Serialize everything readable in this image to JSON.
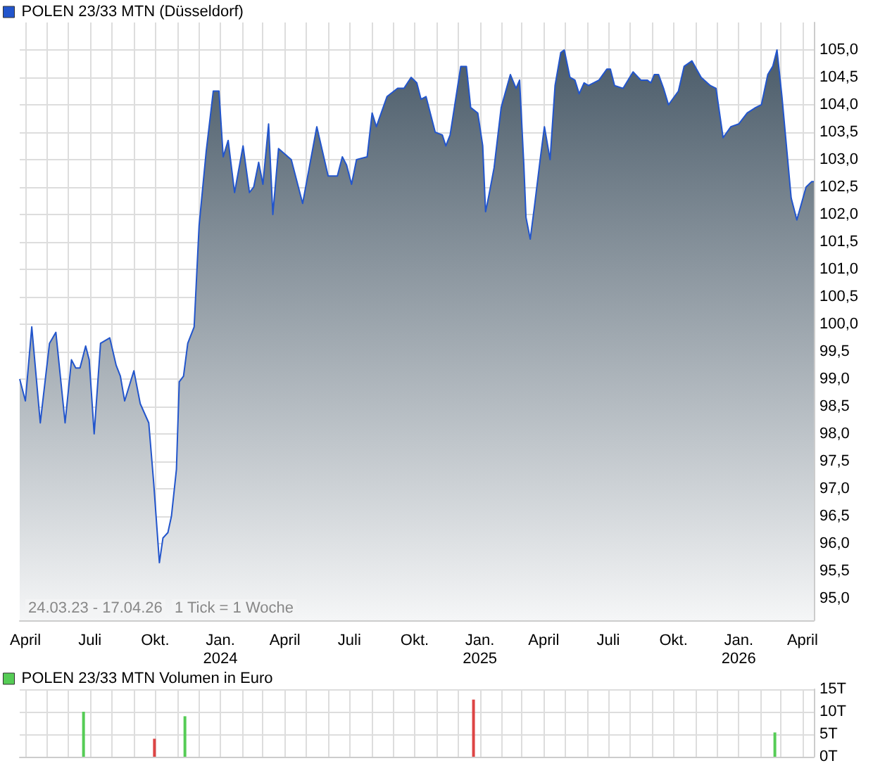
{
  "chart_data": [
    {
      "type": "area",
      "legend": "top left",
      "grid": true,
      "marker": "none",
      "line_style": "solid",
      "annotations": [
        "24.03.23 - 17.04.26",
        "1 Tick = 1 Woche"
      ],
      "xlim": [
        "2023-03-24",
        "2026-04-17"
      ],
      "xticks": [
        {
          "value": "2023-04-01",
          "label": "April"
        },
        {
          "value": "2023-05-01",
          "label": null
        },
        {
          "value": "2023-06-01",
          "label": null
        },
        {
          "value": "2023-07-01",
          "label": "Juli"
        },
        {
          "value": "2023-08-01",
          "label": null
        },
        {
          "value": "2023-09-01",
          "label": null
        },
        {
          "value": "2023-10-01",
          "label": "Okt."
        },
        {
          "value": "2023-11-01",
          "label": null
        },
        {
          "value": "2023-12-01",
          "label": null
        },
        {
          "value": "2024-01-01",
          "label": "Jan.\n2024"
        },
        {
          "value": "2024-02-01",
          "label": null
        },
        {
          "value": "2024-03-01",
          "label": null
        },
        {
          "value": "2024-04-01",
          "label": "April"
        },
        {
          "value": "2024-05-01",
          "label": null
        },
        {
          "value": "2024-06-01",
          "label": null
        },
        {
          "value": "2024-07-01",
          "label": "Juli"
        },
        {
          "value": "2024-08-01",
          "label": null
        },
        {
          "value": "2024-09-01",
          "label": null
        },
        {
          "value": "2024-10-01",
          "label": "Okt."
        },
        {
          "value": "2024-11-01",
          "label": null
        },
        {
          "value": "2024-12-01",
          "label": null
        },
        {
          "value": "2025-01-01",
          "label": "Jan.\n2025"
        },
        {
          "value": "2025-02-01",
          "label": null
        },
        {
          "value": "2025-03-01",
          "label": null
        },
        {
          "value": "2025-04-01",
          "label": "April"
        },
        {
          "value": "2025-05-01",
          "label": null
        },
        {
          "value": "2025-06-01",
          "label": null
        },
        {
          "value": "2025-07-01",
          "label": "Juli"
        },
        {
          "value": "2025-08-01",
          "label": null
        },
        {
          "value": "2025-09-01",
          "label": null
        },
        {
          "value": "2025-10-01",
          "label": "Okt."
        },
        {
          "value": "2025-11-01",
          "label": null
        },
        {
          "value": "2025-12-01",
          "label": null
        },
        {
          "value": "2026-01-01",
          "label": "Jan.\n2026"
        },
        {
          "value": "2026-02-01",
          "label": null
        },
        {
          "value": "2026-03-01",
          "label": null
        },
        {
          "value": "2026-04-01",
          "label": "April"
        }
      ],
      "ylim": [
        94.6,
        105.5
      ],
      "yticks": [
        {
          "value": 95,
          "label": "95,0"
        },
        {
          "value": 95.5,
          "label": "95,5"
        },
        {
          "value": 96,
          "label": "96,0"
        },
        {
          "value": 96.5,
          "label": "96,5"
        },
        {
          "value": 97,
          "label": "97,0"
        },
        {
          "value": 97.5,
          "label": "97,5"
        },
        {
          "value": 98,
          "label": "98,0"
        },
        {
          "value": 98.5,
          "label": "98,5"
        },
        {
          "value": 99,
          "label": "99,0"
        },
        {
          "value": 99.5,
          "label": "99,5"
        },
        {
          "value": 100,
          "label": "100,0"
        },
        {
          "value": 100.5,
          "label": "100,5"
        },
        {
          "value": 101,
          "label": "101,0"
        },
        {
          "value": 101.5,
          "label": "101,5"
        },
        {
          "value": 102,
          "label": "102,0"
        },
        {
          "value": 102.5,
          "label": "102,5"
        },
        {
          "value": 103,
          "label": "103,0"
        },
        {
          "value": 103.5,
          "label": "103,5"
        },
        {
          "value": 104,
          "label": "104,0"
        },
        {
          "value": 104.5,
          "label": "104,5"
        },
        {
          "value": 105,
          "label": "105,0"
        }
      ],
      "series": [
        {
          "name": "POLEN 23/33 MTN (Düsseldorf)",
          "color": "#2255cc",
          "x": [
            "2023-03-24",
            "2023-04-01",
            "2023-04-10",
            "2023-04-22",
            "2023-05-05",
            "2023-05-14",
            "2023-05-27",
            "2023-06-05",
            "2023-06-11",
            "2023-06-17",
            "2023-06-25",
            "2023-06-30",
            "2023-07-07",
            "2023-07-16",
            "2023-07-29",
            "2023-08-07",
            "2023-08-13",
            "2023-08-19",
            "2023-09-01",
            "2023-09-10",
            "2023-09-22",
            "2023-09-29",
            "2023-10-07",
            "2023-10-12",
            "2023-10-19",
            "2023-10-24",
            "2023-10-31",
            "2023-11-04",
            "2023-11-10",
            "2023-11-16",
            "2023-11-25",
            "2023-12-02",
            "2023-12-12",
            "2023-12-22",
            "2023-12-30",
            "2024-01-05",
            "2024-01-12",
            "2024-01-21",
            "2024-02-02",
            "2024-02-11",
            "2024-02-17",
            "2024-02-24",
            "2024-03-01",
            "2024-03-09",
            "2024-03-15",
            "2024-03-23",
            "2024-04-10",
            "2024-04-26",
            "2024-05-16",
            "2024-06-01",
            "2024-06-14",
            "2024-06-21",
            "2024-06-27",
            "2024-07-04",
            "2024-07-11",
            "2024-07-26",
            "2024-08-02",
            "2024-08-08",
            "2024-08-23",
            "2024-09-07",
            "2024-09-16",
            "2024-09-26",
            "2024-10-04",
            "2024-10-10",
            "2024-10-17",
            "2024-10-30",
            "2024-11-09",
            "2024-11-14",
            "2024-11-20",
            "2024-12-05",
            "2024-12-13",
            "2024-12-19",
            "2024-12-29",
            "2025-01-05",
            "2025-01-09",
            "2025-01-13",
            "2025-01-21",
            "2025-01-31",
            "2025-02-13",
            "2025-02-21",
            "2025-02-26",
            "2025-03-04",
            "2025-03-07",
            "2025-03-13",
            "2025-03-19",
            "2025-03-27",
            "2025-04-02",
            "2025-04-10",
            "2025-04-17",
            "2025-04-25",
            "2025-04-30",
            "2025-05-08",
            "2025-05-15",
            "2025-05-21",
            "2025-05-28",
            "2025-06-03",
            "2025-06-18",
            "2025-06-29",
            "2025-07-04",
            "2025-07-10",
            "2025-07-22",
            "2025-08-05",
            "2025-08-16",
            "2025-08-25",
            "2025-08-30",
            "2025-09-04",
            "2025-09-10",
            "2025-09-17",
            "2025-09-24",
            "2025-10-08",
            "2025-10-16",
            "2025-10-27",
            "2025-11-09",
            "2025-11-22",
            "2025-11-30",
            "2025-12-10",
            "2025-12-21",
            "2026-01-01",
            "2026-01-13",
            "2026-01-25",
            "2026-02-02",
            "2026-02-11",
            "2026-02-18",
            "2026-02-24",
            "2026-03-03",
            "2026-03-16",
            "2026-03-24",
            "2026-04-06",
            "2026-04-14",
            "2026-04-17"
          ],
          "values": [
            99.0,
            98.6,
            99.95,
            98.2,
            99.65,
            99.85,
            98.2,
            99.35,
            99.2,
            99.2,
            99.6,
            99.35,
            98.0,
            99.65,
            99.75,
            99.25,
            99.05,
            98.6,
            99.15,
            98.55,
            98.2,
            97.1,
            95.65,
            96.1,
            96.2,
            96.5,
            97.35,
            98.95,
            99.05,
            99.65,
            99.95,
            101.8,
            103.15,
            104.25,
            104.25,
            103.05,
            103.35,
            102.4,
            103.25,
            102.4,
            102.5,
            102.95,
            102.55,
            103.65,
            102.0,
            103.2,
            103.0,
            102.2,
            103.6,
            102.7,
            102.7,
            103.05,
            102.9,
            102.55,
            103.0,
            103.05,
            103.85,
            103.6,
            104.15,
            104.3,
            104.3,
            104.5,
            104.4,
            104.1,
            104.15,
            103.5,
            103.45,
            103.25,
            103.45,
            104.7,
            104.7,
            103.95,
            103.85,
            103.25,
            102.05,
            102.3,
            102.85,
            103.95,
            104.55,
            104.3,
            104.45,
            102.9,
            101.95,
            101.55,
            102.15,
            103.0,
            103.6,
            103.0,
            104.35,
            104.95,
            105.0,
            104.5,
            104.45,
            104.2,
            104.4,
            104.35,
            104.45,
            104.65,
            104.65,
            104.35,
            104.3,
            104.6,
            104.45,
            104.45,
            104.4,
            104.55,
            104.55,
            104.3,
            104.0,
            104.25,
            104.7,
            104.8,
            104.5,
            104.35,
            104.3,
            103.4,
            103.6,
            103.65,
            103.85,
            103.95,
            104.0,
            104.55,
            104.7,
            105.0,
            104.15,
            102.3,
            101.9,
            102.5,
            102.6,
            102.6
          ]
        }
      ]
    },
    {
      "type": "bar",
      "legend": "top left",
      "grid": true,
      "tick_labels": "y",
      "xlim": [
        "2023-03-24",
        "2026-04-17"
      ],
      "xticks": [
        {
          "value": "2023-04-01",
          "label": null
        },
        {
          "value": "2023-05-01",
          "label": null
        },
        {
          "value": "2023-06-01",
          "label": null
        },
        {
          "value": "2023-07-01",
          "label": null
        },
        {
          "value": "2023-08-01",
          "label": null
        },
        {
          "value": "2023-09-01",
          "label": null
        },
        {
          "value": "2023-10-01",
          "label": null
        },
        {
          "value": "2023-11-01",
          "label": null
        },
        {
          "value": "2023-12-01",
          "label": null
        },
        {
          "value": "2024-01-01",
          "label": null
        },
        {
          "value": "2024-02-01",
          "label": null
        },
        {
          "value": "2024-03-01",
          "label": null
        },
        {
          "value": "2024-04-01",
          "label": null
        },
        {
          "value": "2024-05-01",
          "label": null
        },
        {
          "value": "2024-06-01",
          "label": null
        },
        {
          "value": "2024-07-01",
          "label": null
        },
        {
          "value": "2024-08-01",
          "label": null
        },
        {
          "value": "2024-09-01",
          "label": null
        },
        {
          "value": "2024-10-01",
          "label": null
        },
        {
          "value": "2024-11-01",
          "label": null
        },
        {
          "value": "2024-12-01",
          "label": null
        },
        {
          "value": "2025-01-01",
          "label": null
        },
        {
          "value": "2025-02-01",
          "label": null
        },
        {
          "value": "2025-03-01",
          "label": null
        },
        {
          "value": "2025-04-01",
          "label": null
        },
        {
          "value": "2025-05-01",
          "label": null
        },
        {
          "value": "2025-06-01",
          "label": null
        },
        {
          "value": "2025-07-01",
          "label": null
        },
        {
          "value": "2025-08-01",
          "label": null
        },
        {
          "value": "2025-09-01",
          "label": null
        },
        {
          "value": "2025-10-01",
          "label": null
        },
        {
          "value": "2025-11-01",
          "label": null
        },
        {
          "value": "2025-12-01",
          "label": null
        },
        {
          "value": "2026-01-01",
          "label": null
        },
        {
          "value": "2026-02-01",
          "label": null
        },
        {
          "value": "2026-03-01",
          "label": null
        },
        {
          "value": "2026-04-01",
          "label": null
        }
      ],
      "ylim": [
        0,
        15
      ],
      "yticks": [
        {
          "value": 0,
          "label": "0T"
        },
        {
          "value": 5,
          "label": "5T"
        },
        {
          "value": 10,
          "label": "10T"
        },
        {
          "value": 15,
          "label": "15T"
        }
      ],
      "series": [
        {
          "name": "POLEN 23/33 MTN Volumen in Euro",
          "color": "#55cc55",
          "x": [
            "2023-06-22",
            "2023-09-30",
            "2023-11-12",
            "2024-12-23",
            "2026-02-21"
          ],
          "values": [
            10,
            4,
            9,
            12.7,
            5.4
          ],
          "colors": [
            "#55cc55",
            "#dd4444",
            "#55cc55",
            "#dd4444",
            "#55cc55"
          ]
        }
      ]
    }
  ]
}
